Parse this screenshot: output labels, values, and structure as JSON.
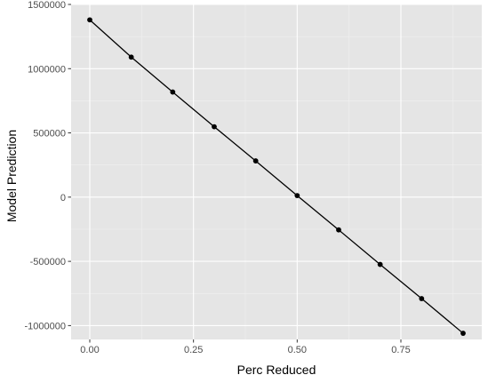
{
  "chart_data": {
    "type": "line",
    "xlabel": "Perc Reduced",
    "ylabel": "Model Prediction",
    "xlim": [
      -0.045,
      0.945
    ],
    "ylim": [
      -1108000,
      1500000
    ],
    "x_ticks": [
      0.0,
      0.25,
      0.5,
      0.75
    ],
    "x_tick_labels": [
      "0.00",
      "0.25",
      "0.50",
      "0.75"
    ],
    "y_ticks": [
      -1000000,
      -500000,
      0,
      500000,
      1000000,
      1500000
    ],
    "y_tick_labels": [
      "-1000000",
      "-500000",
      "0",
      "500000",
      "1000000",
      "1500000"
    ],
    "grid": true,
    "series": [
      {
        "x": [
          0.0,
          0.1,
          0.2,
          0.3,
          0.4,
          0.5,
          0.6,
          0.7,
          0.8,
          0.9
        ],
        "values": [
          1380000,
          1090000,
          818000,
          548000,
          282000,
          12000,
          -255000,
          -524000,
          -790000,
          -1060000
        ]
      }
    ],
    "colors": {
      "panel": "#e5e5e5",
      "grid_major": "#ffffff",
      "grid_minor": "#f2f2f2",
      "line": "#000000",
      "point": "#000000"
    }
  }
}
